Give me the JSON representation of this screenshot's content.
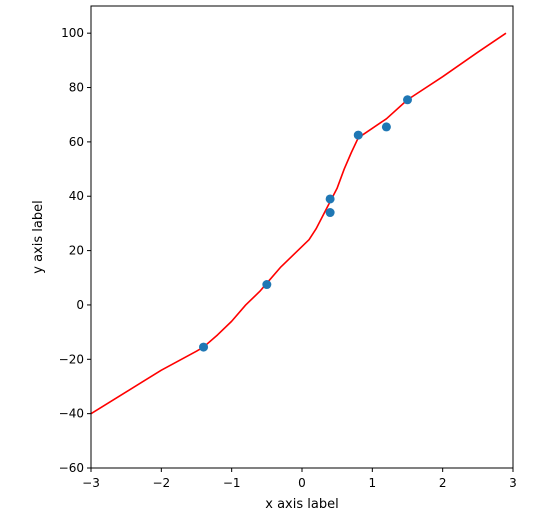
{
  "chart_data": {
    "type": "scatter",
    "title": "",
    "xlabel": "x axis label",
    "ylabel": "y axis label",
    "xlim": [
      -3,
      3
    ],
    "ylim": [
      -60,
      110
    ],
    "xticks": [
      -3,
      -2,
      -1,
      0,
      1,
      2,
      3
    ],
    "yticks": [
      -60,
      -40,
      -20,
      0,
      20,
      40,
      60,
      80,
      100
    ],
    "xtick_labels": [
      "−3",
      "−2",
      "−1",
      "0",
      "1",
      "2",
      "3"
    ],
    "ytick_labels": [
      "−60",
      "−40",
      "−20",
      "0",
      "20",
      "40",
      "60",
      "80",
      "100"
    ],
    "grid": false,
    "legend": "none",
    "series": [
      {
        "type": "scatter",
        "color": "#1f77b4",
        "x": [
          -1.4,
          -0.5,
          0.4,
          0.4,
          0.8,
          1.2,
          1.5
        ],
        "y": [
          -15.5,
          7.5,
          39,
          34,
          62.5,
          65.5,
          75.5
        ]
      },
      {
        "type": "line",
        "color": "#ff0000",
        "x": [
          -3,
          -2.5,
          -2,
          -1.5,
          -1.4,
          -1.2,
          -1,
          -0.8,
          -0.6,
          -0.5,
          -0.3,
          -0.1,
          0.1,
          0.2,
          0.3,
          0.4,
          0.5,
          0.6,
          0.7,
          0.8,
          1,
          1.2,
          1.5,
          2,
          2.5,
          2.9
        ],
        "y": [
          -40,
          -32,
          -24,
          -17,
          -15.5,
          -11,
          -6,
          0,
          5,
          8,
          14,
          19,
          24,
          28,
          33,
          38,
          43,
          50,
          56,
          61.5,
          65,
          68.5,
          75.5,
          84,
          93,
          100
        ]
      }
    ]
  }
}
